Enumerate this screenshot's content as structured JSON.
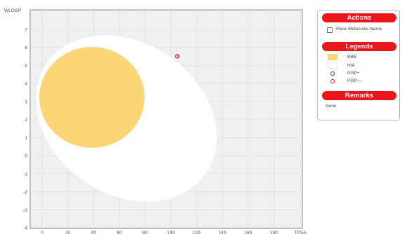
{
  "plot": {
    "y_axis_label": "WLOGP",
    "x_axis_label": "TPSA",
    "x_ticks": [
      "0",
      "20",
      "40",
      "60",
      "80",
      "100",
      "120",
      "140",
      "160",
      "180",
      "TPSA"
    ],
    "y_ticks": [
      "-4",
      "-3",
      "-2",
      "-1",
      "0",
      "1",
      "2",
      "3",
      "4",
      "5",
      "6",
      "7"
    ],
    "colors": {
      "background": "#f0f0f0",
      "hia_region": "#ffffff",
      "bbb_region": "#fcd574",
      "pgp_plus": "#1f3fbf",
      "pgp_minus": "#e8171c"
    },
    "points": [
      {
        "tpsa": 105,
        "wlogp": 5.5,
        "class": "PGP-"
      }
    ]
  },
  "panel": {
    "actions_header": "Actions",
    "show_names_label": "Show Molecules Name",
    "legends_header": "Legends",
    "legend_items": [
      {
        "label": "BBB",
        "icon": "bbb-swatch"
      },
      {
        "label": "HIA",
        "icon": "hia-swatch"
      },
      {
        "label": "PGP+",
        "icon": "pgp-plus-circle"
      },
      {
        "label": "PGP—",
        "icon": "pgp-minus-circle"
      }
    ],
    "remarks_header": "Remarks",
    "remarks_text": "None"
  }
}
